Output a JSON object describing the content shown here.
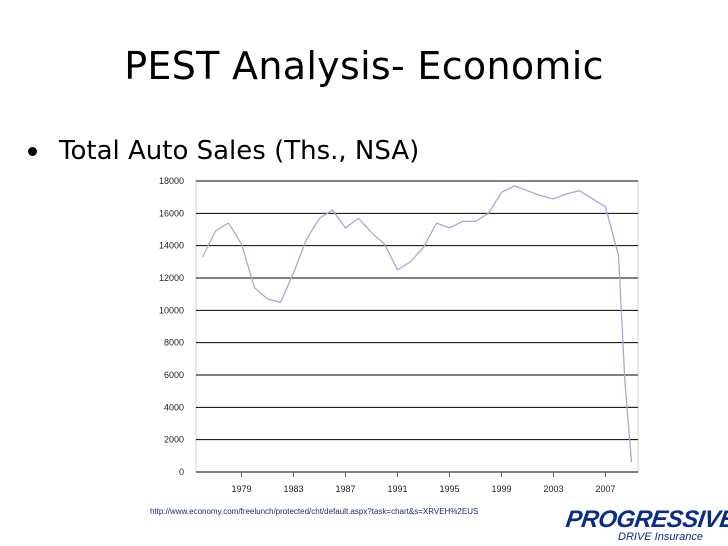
{
  "slide": {
    "title": "PEST Analysis- Economic",
    "bullet": "Total Auto Sales (Ths., NSA)",
    "source_url": "http://www.economy.com/freelunch/protected/cht/default.aspx?task=chart&s=XRVEH%2EUS"
  },
  "logo": {
    "name": "PROGRESSIVE",
    "mark": "®",
    "tagline": "DRIVE Insurance",
    "color": "#0a2c8a"
  },
  "chart_data": {
    "type": "line",
    "title": "",
    "xlabel": "",
    "ylabel": "",
    "ylim": [
      0,
      18000
    ],
    "xlim": [
      1975.5,
      2009.5
    ],
    "y_ticks": [
      0,
      2000,
      4000,
      6000,
      8000,
      10000,
      12000,
      14000,
      16000,
      18000
    ],
    "x_tick_labels": [
      "1979",
      "1983",
      "1987",
      "1991",
      "1995",
      "1999",
      "2003",
      "2007"
    ],
    "grid": "horizontal",
    "line_color": "#a8a8d8",
    "grid_color": "#000000",
    "series": [
      {
        "name": "",
        "x": [
          1976,
          1977,
          1978,
          1979,
          1980,
          1981,
          1982,
          1983,
          1984,
          1985,
          1986,
          1987,
          1988,
          1989,
          1990,
          1991,
          1992,
          1993,
          1994,
          1995,
          1996,
          1997,
          1998,
          1999,
          2000,
          2001,
          2002,
          2003,
          2004,
          2005,
          2006,
          2007,
          2008,
          2008.5,
          2009
        ],
        "values": [
          13300,
          14900,
          15400,
          14100,
          11400,
          10700,
          10500,
          12300,
          14400,
          15700,
          16200,
          15100,
          15700,
          14800,
          14100,
          12500,
          13000,
          13900,
          15400,
          15100,
          15500,
          15500,
          16000,
          17300,
          17700,
          17400,
          17100,
          16900,
          17200,
          17400,
          16900,
          16400,
          13400,
          5500,
          600
        ]
      }
    ]
  }
}
